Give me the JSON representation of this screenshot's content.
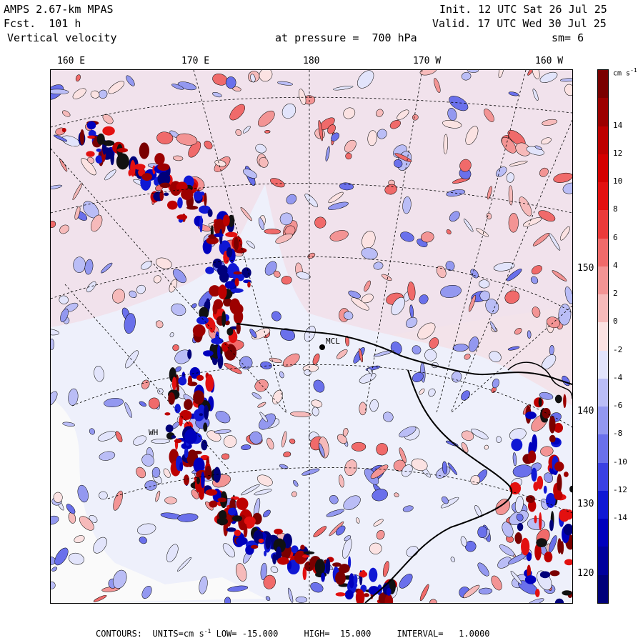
{
  "header": {
    "model": "AMPS 2.67-km MPAS",
    "forecast": "Fcst.  101 h",
    "field": "Vertical velocity",
    "init": "Init. 12 UTC Sat 26 Jul 25",
    "valid": "Valid. 17 UTC Wed 30 Jul 25",
    "level": "at pressure =  700 hPa",
    "smoothing": "sm= 6"
  },
  "map": {
    "top_longitudes": [
      "160 E",
      "170 E",
      "180",
      "170 W",
      "160 W"
    ],
    "right_latitudes": [
      "150 W",
      "140 W",
      "130 W",
      "120 W"
    ],
    "stations": [
      {
        "label": "MCL"
      },
      {
        "label": "WH"
      }
    ],
    "colors": {
      "ocean_background": "#f2e4ec",
      "ice_shelf_background": "#efe4ef",
      "continent_background": "#eef0fb",
      "coast": "#000000"
    }
  },
  "colorbar": {
    "units": "cm s",
    "units_exponent": "-1",
    "tick_labels": [
      "14",
      "12",
      "10",
      "8",
      "6",
      "4",
      "2",
      "0",
      "-2",
      "-4",
      "-6",
      "-8",
      "-10",
      "-12",
      "-14"
    ],
    "colors": [
      "#7a0000",
      "#9c0000",
      "#bd0000",
      "#d40000",
      "#e31010",
      "#eb3a3a",
      "#f06a6a",
      "#f39494",
      "#f6baba",
      "#fbe2e2",
      "#e2e4fb",
      "#babdf6",
      "#9398f0",
      "#6a70eb",
      "#3a40e3",
      "#1018d4",
      "#0000bd",
      "#00009c",
      "#00007a"
    ]
  },
  "footer": {
    "contours_label": "CONTOURS:",
    "units_label": "UNITS=cm s",
    "units_exponent": "-1",
    "low": "LOW= -15.000",
    "high": "HIGH=  15.000",
    "interval": "INTERVAL=   1.0000"
  }
}
